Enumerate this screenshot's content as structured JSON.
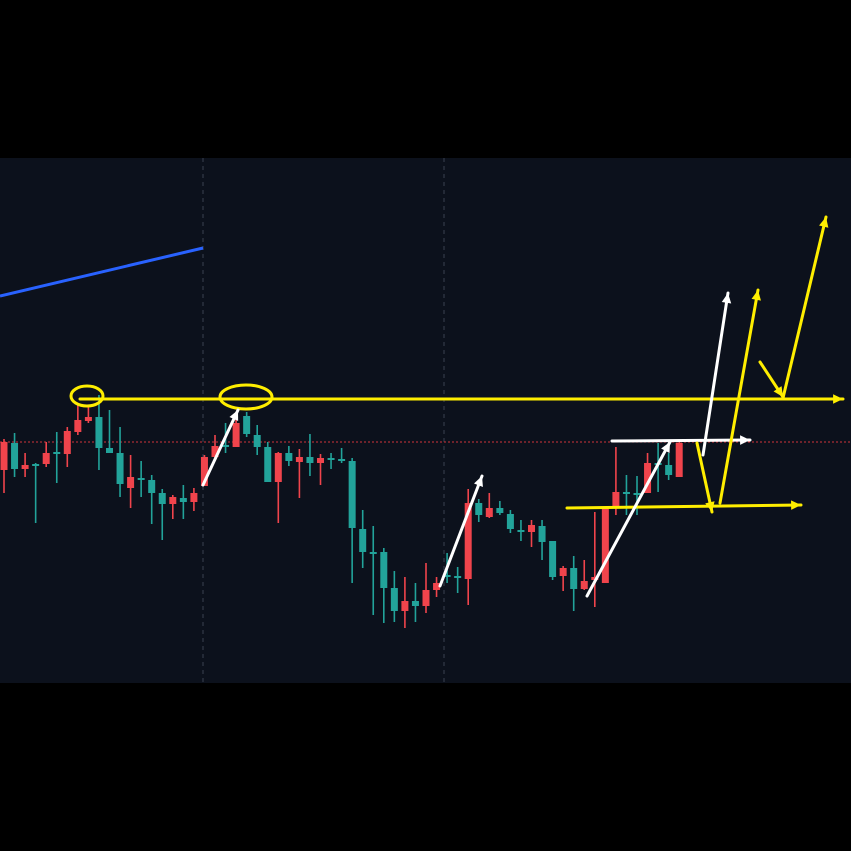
{
  "chart_data": {
    "type": "candlestick",
    "title": "",
    "xlabel": "",
    "ylabel": "",
    "ylim": [
      17,
      542
    ],
    "grid": false,
    "colors": {
      "background": "#0c111c",
      "frame": "#000000",
      "up": "#22a39a",
      "down": "#f0444c",
      "reference_line": "#d0323a",
      "trend_line": "#2962ff",
      "annotation_yellow": "#ffee00",
      "annotation_white": "#ffffff"
    },
    "candles": [
      {
        "o": 258,
        "h": 261,
        "l": 207,
        "c": 230
      },
      {
        "o": 231,
        "h": 267,
        "l": 223,
        "c": 257
      },
      {
        "o": 235,
        "h": 247,
        "l": 223,
        "c": 231
      },
      {
        "o": 236,
        "h": 237,
        "l": 177,
        "c": 236
      },
      {
        "o": 247,
        "h": 258,
        "l": 233,
        "c": 236
      },
      {
        "o": 248,
        "h": 268,
        "l": 217,
        "c": 248
      },
      {
        "o": 269,
        "h": 273,
        "l": 233,
        "c": 246
      },
      {
        "o": 280,
        "h": 297,
        "l": 265,
        "c": 268
      },
      {
        "o": 283,
        "h": 293,
        "l": 277,
        "c": 279
      },
      {
        "o": 252,
        "h": 305,
        "l": 230,
        "c": 283
      },
      {
        "o": 247,
        "h": 290,
        "l": 247,
        "c": 252
      },
      {
        "o": 216,
        "h": 273,
        "l": 203,
        "c": 247
      },
      {
        "o": 223,
        "h": 245,
        "l": 192,
        "c": 212
      },
      {
        "o": 220,
        "h": 239,
        "l": 203,
        "c": 222
      },
      {
        "o": 207,
        "h": 225,
        "l": 176,
        "c": 220
      },
      {
        "o": 196,
        "h": 211,
        "l": 160,
        "c": 207
      },
      {
        "o": 203,
        "h": 205,
        "l": 181,
        "c": 196
      },
      {
        "o": 198,
        "h": 215,
        "l": 181,
        "c": 202
      },
      {
        "o": 207,
        "h": 212,
        "l": 189,
        "c": 198
      },
      {
        "o": 243,
        "h": 245,
        "l": 214,
        "c": 214
      },
      {
        "o": 254,
        "h": 265,
        "l": 242,
        "c": 243
      },
      {
        "o": 253,
        "h": 277,
        "l": 247,
        "c": 255
      },
      {
        "o": 277,
        "h": 282,
        "l": 253,
        "c": 253
      },
      {
        "o": 266,
        "h": 288,
        "l": 263,
        "c": 284
      },
      {
        "o": 253,
        "h": 275,
        "l": 245,
        "c": 265
      },
      {
        "o": 218,
        "h": 258,
        "l": 218,
        "c": 253
      },
      {
        "o": 247,
        "h": 248,
        "l": 177,
        "c": 218
      },
      {
        "o": 239,
        "h": 254,
        "l": 234,
        "c": 247
      },
      {
        "o": 243,
        "h": 251,
        "l": 202,
        "c": 238
      },
      {
        "o": 237,
        "h": 266,
        "l": 224,
        "c": 243
      },
      {
        "o": 242,
        "h": 246,
        "l": 215,
        "c": 237
      },
      {
        "o": 242,
        "h": 247,
        "l": 231,
        "c": 242
      },
      {
        "o": 241,
        "h": 252,
        "l": 237,
        "c": 241
      },
      {
        "o": 172,
        "h": 242,
        "l": 117,
        "c": 239
      },
      {
        "o": 148,
        "h": 190,
        "l": 132,
        "c": 171
      },
      {
        "o": 148,
        "h": 174,
        "l": 85,
        "c": 148
      },
      {
        "o": 112,
        "h": 152,
        "l": 77,
        "c": 148
      },
      {
        "o": 89,
        "h": 129,
        "l": 78,
        "c": 112
      },
      {
        "o": 99,
        "h": 123,
        "l": 72,
        "c": 89
      },
      {
        "o": 94,
        "h": 117,
        "l": 78,
        "c": 99
      },
      {
        "o": 110,
        "h": 137,
        "l": 87,
        "c": 94
      },
      {
        "o": 117,
        "h": 123,
        "l": 103,
        "c": 110
      },
      {
        "o": 125,
        "h": 147,
        "l": 117,
        "c": 125
      },
      {
        "o": 122,
        "h": 133,
        "l": 107,
        "c": 124
      },
      {
        "o": 197,
        "h": 211,
        "l": 95,
        "c": 121
      },
      {
        "o": 185,
        "h": 201,
        "l": 178,
        "c": 197
      },
      {
        "o": 192,
        "h": 207,
        "l": 182,
        "c": 183
      },
      {
        "o": 187,
        "h": 199,
        "l": 185,
        "c": 192
      },
      {
        "o": 171,
        "h": 190,
        "l": 167,
        "c": 186
      },
      {
        "o": 169,
        "h": 180,
        "l": 159,
        "c": 170
      },
      {
        "o": 175,
        "h": 180,
        "l": 153,
        "c": 168
      },
      {
        "o": 158,
        "h": 180,
        "l": 140,
        "c": 174
      },
      {
        "o": 123,
        "h": 159,
        "l": 120,
        "c": 159
      },
      {
        "o": 132,
        "h": 134,
        "l": 109,
        "c": 124
      },
      {
        "o": 111,
        "h": 144,
        "l": 89,
        "c": 132
      },
      {
        "o": 119,
        "h": 140,
        "l": 110,
        "c": 111
      },
      {
        "o": 123,
        "h": 188,
        "l": 93,
        "c": 120
      },
      {
        "o": 192,
        "h": 192,
        "l": 117,
        "c": 117
      },
      {
        "o": 208,
        "h": 253,
        "l": 185,
        "c": 192
      },
      {
        "o": 206,
        "h": 225,
        "l": 185,
        "c": 208
      },
      {
        "o": 207,
        "h": 224,
        "l": 185,
        "c": 207
      },
      {
        "o": 237,
        "h": 247,
        "l": 207,
        "c": 207
      },
      {
        "o": 236,
        "h": 257,
        "l": 208,
        "c": 237
      },
      {
        "o": 225,
        "h": 247,
        "l": 220,
        "c": 235
      },
      {
        "o": 257,
        "h": 259,
        "l": 223,
        "c": 223
      }
    ],
    "reference_price": 258,
    "resistance_price": 301,
    "support_price": 193
  }
}
